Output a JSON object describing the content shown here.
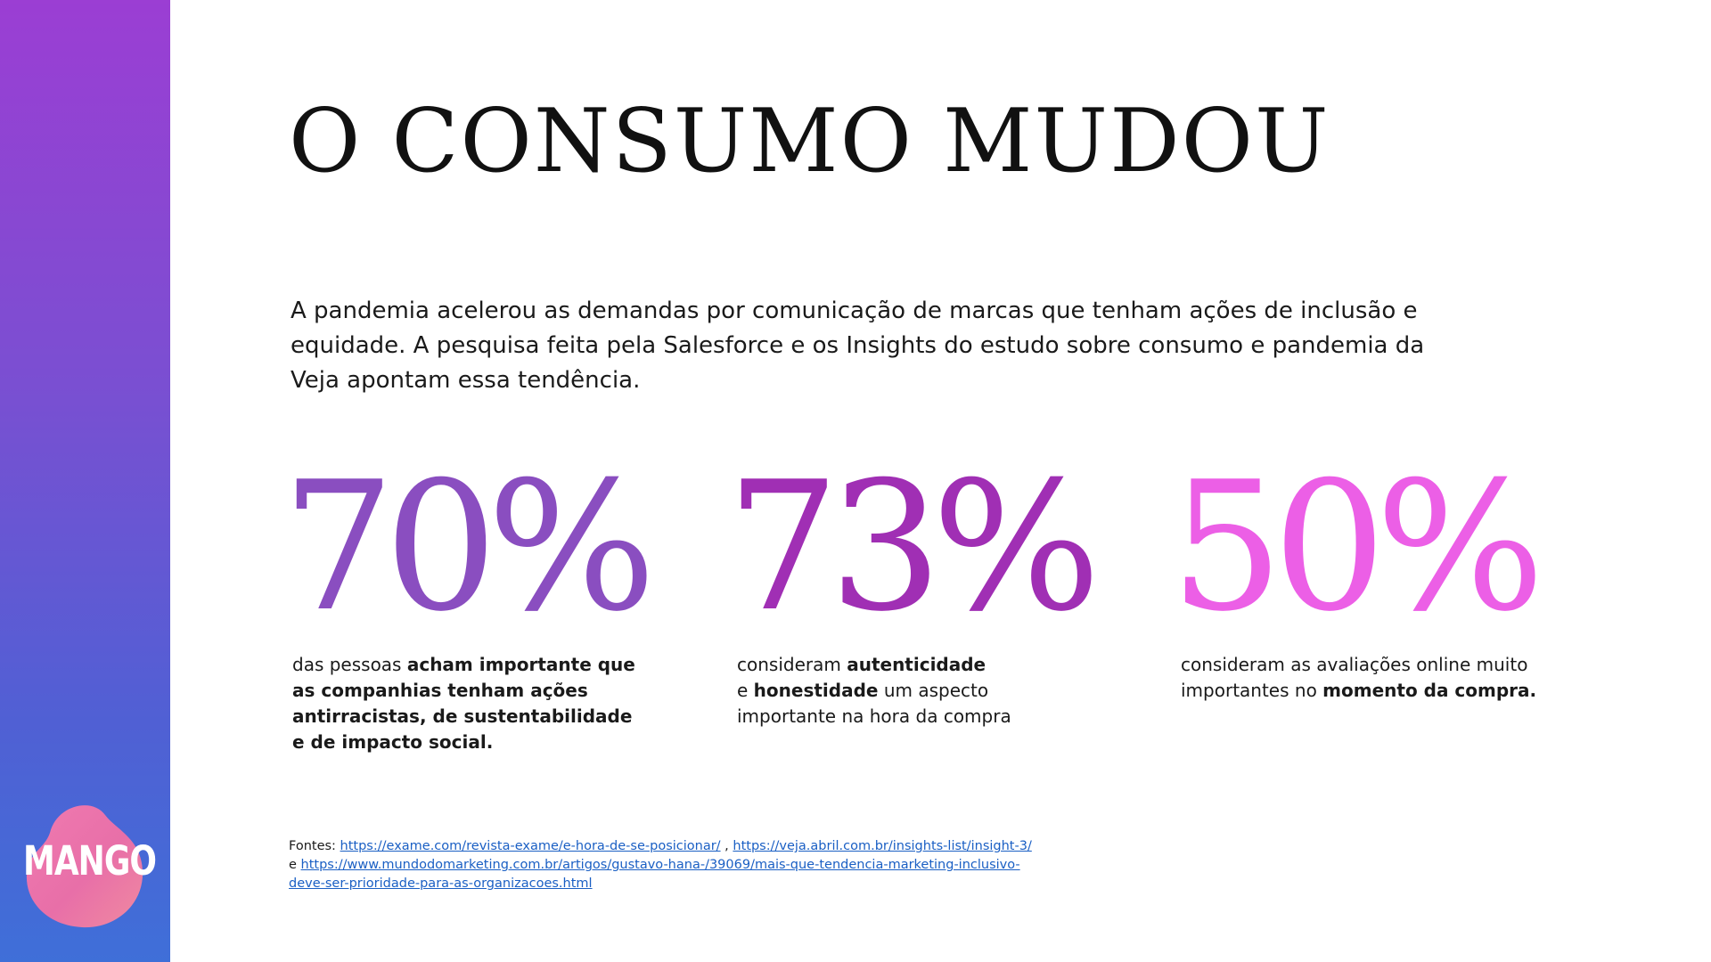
{
  "title": "O CONSUMO MUDOU",
  "intro": "A pandemia acelerou as demandas por comunicação de marcas que tenham ações de inclusão e equidade. A pesquisa feita pela Salesforce e os Insights do estudo sobre consumo e pandemia da Veja apontam essa tendência.",
  "logo": {
    "text": "MANGO",
    "icon": "mango-blob-logo"
  },
  "colors": {
    "sidebar_top": "#9b3ed3",
    "sidebar_bottom": "#3f6fd8",
    "stat1": "#8a4ec0",
    "stat2": "#a02fb4",
    "stat3": "#ec5fe6",
    "link": "#1a5fc4"
  },
  "stats": [
    {
      "number": "70%",
      "lines": [
        {
          "plain": "das pessoas ",
          "bold": "acham importante que"
        },
        {
          "plain": "",
          "bold": "as companhias tenham ações"
        },
        {
          "plain": "",
          "bold": "antirracistas, de sustentabilidade"
        },
        {
          "plain": "",
          "bold": "e de impacto social."
        }
      ]
    },
    {
      "number": "73%",
      "lines": [
        {
          "plain": "consideram ",
          "bold": "autenticidade",
          "after": ""
        },
        {
          "plain": "e ",
          "bold": "honestidade",
          "after": " um aspecto"
        },
        {
          "plain": "importante na hora da compra",
          "bold": "",
          "after": ""
        }
      ]
    },
    {
      "number": "50%",
      "lines": [
        {
          "plain": "consideram as avaliações online muito",
          "bold": ""
        },
        {
          "plain": "importantes no ",
          "bold": "momento da compra."
        }
      ]
    }
  ],
  "sources": {
    "label": "Fontes: ",
    "link1": "https://exame.com/revista-exame/e-hora-de-se-posicionar/",
    "separator": " , ",
    "link2": "https://veja.abril.com.br/insights-list/insight-3/",
    "conjunction": "e ",
    "link3_line1": "https://www.mundodomarketing.com.br/artigos/gustavo-hana-/39069/mais-que-tendencia-marketing-inclusivo-",
    "link3_line2": "deve-ser-prioridade-para-as-organizacoes.html"
  }
}
